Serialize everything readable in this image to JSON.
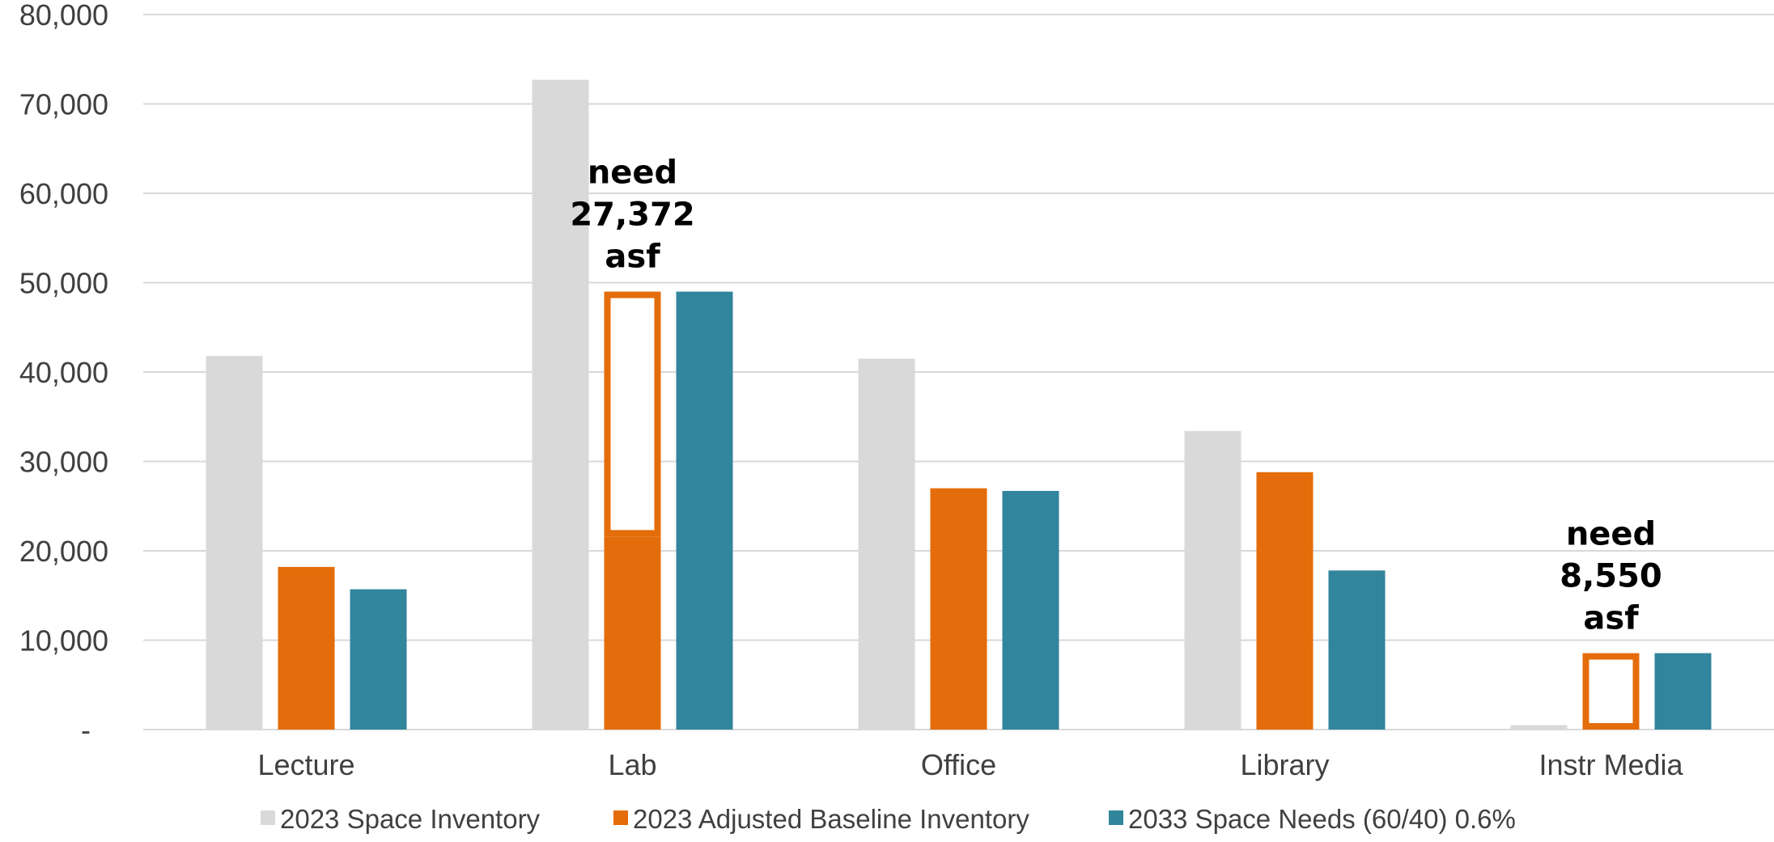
{
  "chart_data": {
    "type": "bar",
    "categories": [
      "Lecture",
      "Lab",
      "Office",
      "Library",
      "Instr Media"
    ],
    "series": [
      {
        "name": "2023 Space Inventory",
        "color": "#d9d9d9",
        "values": [
          41800,
          72700,
          41500,
          33400,
          500
        ]
      },
      {
        "name": "2023 Adjusted Baseline Inventory",
        "color": "#e46c0a",
        "values": [
          18200,
          21600,
          27000,
          28800,
          0
        ]
      },
      {
        "name": "2033 Space Needs (60/40) 0.6%",
        "color": "#31859c",
        "values": [
          15700,
          49000,
          26700,
          17800,
          8550
        ]
      }
    ],
    "need_outlines": [
      {
        "category": "Lab",
        "from": 21600,
        "to": 49000,
        "color": "#e46c0a"
      },
      {
        "category": "Instr Media",
        "from": 0,
        "to": 8550,
        "color": "#e46c0a"
      }
    ],
    "annotations": [
      {
        "category": "Lab",
        "lines": [
          "need",
          "27,372",
          "asf"
        ]
      },
      {
        "category": "Instr Media",
        "lines": [
          "need",
          "8,550",
          "asf"
        ]
      }
    ],
    "ylim": [
      0,
      80000
    ],
    "yticks": [
      0,
      10000,
      20000,
      30000,
      40000,
      50000,
      60000,
      70000,
      80000
    ],
    "ytick_labels": [
      "-",
      "10,000",
      "20,000",
      "30,000",
      "40,000",
      "50,000",
      "60,000",
      "70,000",
      "80,000"
    ],
    "grid": true,
    "legend_position": "bottom"
  }
}
